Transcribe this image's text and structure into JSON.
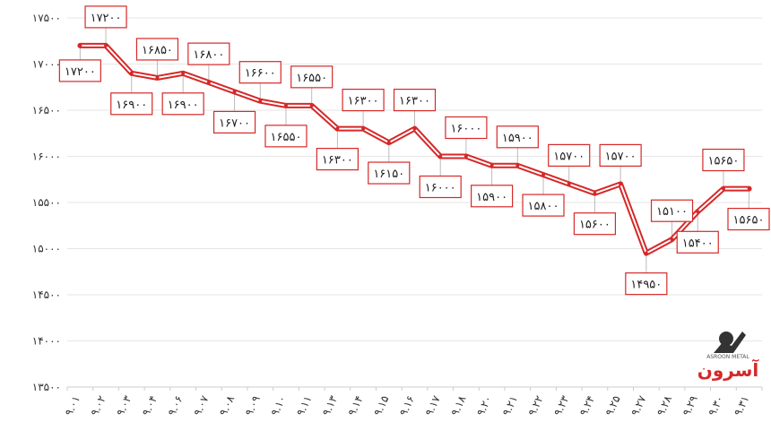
{
  "chart_data": {
    "type": "line",
    "x": [
      "۹.۰۱",
      "۹.۰۲",
      "۹.۰۳",
      "۹.۰۴",
      "۹.۰۶",
      "۹.۰۷",
      "۹.۰۸",
      "۹.۰۹",
      "۹.۱۰",
      "۹.۱۱",
      "۹.۱۳",
      "۹.۱۴",
      "۹.۱۵",
      "۹.۱۶",
      "۹.۱۷",
      "۹.۱۸",
      "۹.۲۰",
      "۹.۲۱",
      "۹.۲۲",
      "۹.۲۳",
      "۹.۲۴",
      "۹.۲۵",
      "۹.۲۷",
      "۹.۲۸",
      "۹.۲۹",
      "۹.۳۰",
      "۹.۳۱"
    ],
    "series": [
      {
        "values": [
          17200,
          17200,
          16900,
          16850,
          16900,
          16800,
          16700,
          16600,
          16550,
          16550,
          16300,
          16300,
          16150,
          16300,
          16000,
          16000,
          15900,
          15900,
          15800,
          15700,
          15600,
          15700,
          14950,
          15100,
          15400,
          15650,
          15650
        ],
        "labels": [
          "۱۷۲۰۰",
          "۱۷۲۰۰",
          "۱۶۹۰۰",
          "۱۶۸۵۰",
          "۱۶۹۰۰",
          "۱۶۸۰۰",
          "۱۶۷۰۰",
          "۱۶۶۰۰",
          "۱۶۵۵۰",
          "۱۶۵۵۰",
          "۱۶۳۰۰",
          "۱۶۳۰۰",
          "۱۶۱۵۰",
          "۱۶۳۰۰",
          "۱۶۰۰۰",
          "۱۶۰۰۰",
          "۱۵۹۰۰",
          "۱۵۹۰۰",
          "۱۵۸۰۰",
          "۱۵۷۰۰",
          "۱۵۶۰۰",
          "۱۵۷۰۰",
          "۱۴۹۵۰",
          "۱۵۱۰۰",
          "۱۵۴۰۰",
          "۱۵۶۵۰",
          "۱۵۶۵۰"
        ]
      }
    ],
    "ylim": [
      13500,
      17500
    ],
    "yticks": [
      13500,
      14000,
      14500,
      15000,
      15500,
      16000,
      16500,
      17000,
      17500
    ],
    "ytick_labels": [
      "۱۳۵۰۰",
      "۱۴۰۰۰",
      "۱۴۵۰۰",
      "۱۵۰۰۰",
      "۱۵۵۰۰",
      "۱۶۰۰۰",
      "۱۶۵۰۰",
      "۱۷۰۰۰",
      "۱۷۵۰۰"
    ],
    "grid": true,
    "line_color": "#d62828",
    "grid_color": "#e6e6e6",
    "legend": "none"
  },
  "watermark": {
    "logo_text": "آسرون",
    "logo_subtext": "ASROON METAL",
    "accent": "#d62828"
  }
}
